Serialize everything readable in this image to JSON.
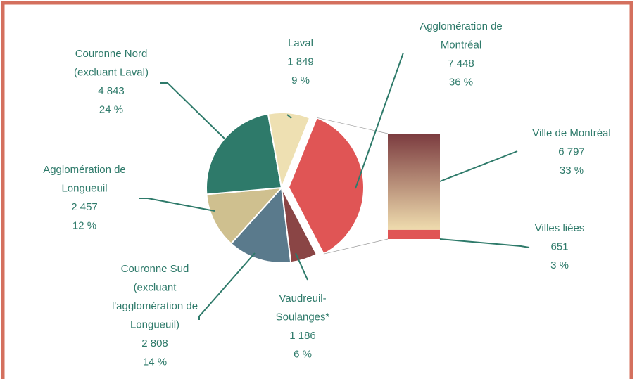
{
  "chart_data": {
    "type": "bar-of-pie",
    "categories": [
      [
        "Agglomération de",
        "Montréal"
      ],
      [
        "Vaudreuil-",
        "Soulanges*"
      ],
      [
        "Couronne Sud",
        "(excluant",
        "l'agglomération de",
        "Longueuil)"
      ],
      [
        "Agglomération de",
        "Longueuil"
      ],
      [
        "Couronne Nord",
        "(excluant Laval)"
      ],
      [
        "Laval"
      ]
    ],
    "values": [
      7448,
      1186,
      2808,
      2457,
      4843,
      1849
    ],
    "value_labels": [
      "7 448",
      "1 186",
      "2 808",
      "2 457",
      "4 843",
      "1 849"
    ],
    "percents": [
      36,
      6,
      14,
      12,
      24,
      9
    ],
    "percent_labels": [
      "36 %",
      "6 %",
      "14 %",
      "12 %",
      "24 %",
      "9 %"
    ],
    "colors": [
      "#e05555",
      "#8a4545",
      "#5a7a8c",
      "#cfc08f",
      "#2e7a6a",
      "#eee0b2"
    ],
    "bar": {
      "categories": [
        [
          "Ville de Montréal"
        ],
        [
          "Villes liées"
        ]
      ],
      "values": [
        6797,
        651
      ],
      "value_labels": [
        "6 797",
        "651"
      ],
      "percents": [
        33,
        3
      ],
      "percent_labels": [
        "33 %",
        "3 %"
      ],
      "gradient": [
        "#7b3b3f",
        "#efdcae"
      ],
      "colors": [
        "gradient",
        "#e05555"
      ]
    }
  }
}
